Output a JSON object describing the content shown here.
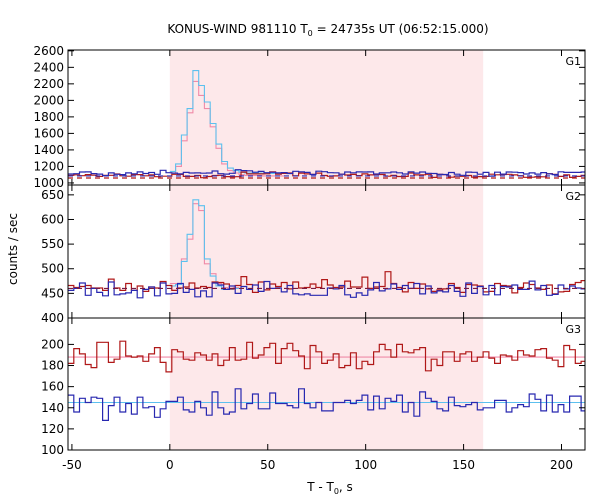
{
  "colors": {
    "shade": "#fde8ea",
    "red": "#b01818",
    "blue": "#2828b0",
    "pink": "#f08aa8",
    "lightblue": "#5cc0ee",
    "axis": "#000000"
  },
  "chart_data": {
    "type": "line",
    "title_main": "KONUS-WIND 981110 T",
    "title_sub": "0",
    "title_rest": " = 24735s UT (06:52:15.000)",
    "xlabel_main": "T - T",
    "xlabel_sub": "0",
    "xlabel_rest": ", s",
    "ylabel": "counts / sec",
    "xlim": [
      -52,
      212
    ],
    "x_ticks": [
      "-50",
      "0",
      "50",
      "100",
      "150",
      "200"
    ],
    "shaded_interval": [
      0,
      160
    ],
    "panels": [
      {
        "name": "G1",
        "ylim": [
          975,
          2610
        ],
        "y_ticks": [
          "1000",
          "1200",
          "1400",
          "1600",
          "1800",
          "2000",
          "2200",
          "2400",
          "2600"
        ],
        "background": [
          1085,
          1060
        ],
        "series": [
          {
            "name": "red",
            "bins_start": -52,
            "bin_width": 2.944,
            "values": [
              1093,
              1098,
              1088,
              1101,
              1094,
              1079,
              1091,
              1093,
              1108,
              1086,
              1081,
              1101,
              1101,
              1087,
              1098,
              1076,
              1081,
              1081,
              1104,
              1103,
              1079,
              1079,
              1090,
              1064,
              1078,
              1090,
              1092,
              1077,
              1074,
              1076,
              1131,
              1109,
              1109,
              1110,
              1111,
              1134,
              1106,
              1116,
              1120,
              1086,
              1118,
              1110,
              1105,
              1119,
              1090,
              1080,
              1085,
              1106,
              1096,
              1103,
              1089,
              1110,
              1097,
              1103,
              1102,
              1081,
              1091,
              1078,
              1079,
              1120,
              1097,
              1099,
              1104,
              1067,
              1104,
              1101,
              1069,
              1082,
              1080,
              1090,
              1070,
              1077,
              1079,
              1106,
              1098,
              1102,
              1104,
              1097,
              1088,
              1068,
              1070,
              1076,
              1074,
              1112,
              1103,
              1079,
              1097,
              1067,
              1079,
              1092
            ]
          },
          {
            "name": "blue",
            "bins_start": -52,
            "bin_width": 2.944,
            "values": [
              1108,
              1112,
              1133,
              1134,
              1113,
              1107,
              1089,
              1122,
              1104,
              1101,
              1122,
              1111,
              1134,
              1114,
              1126,
              1104,
              1153,
              1124,
              1119,
              1110,
              1127,
              1120,
              1121,
              1118,
              1120,
              1144,
              1112,
              1107,
              1117,
              1160,
              1150,
              1147,
              1130,
              1140,
              1124,
              1129,
              1122,
              1125,
              1114,
              1141,
              1134,
              1128,
              1102,
              1142,
              1136,
              1124,
              1123,
              1106,
              1133,
              1123,
              1134,
              1133,
              1134,
              1108,
              1121,
              1123,
              1133,
              1123,
              1108,
              1135,
              1119,
              1132,
              1117,
              1114,
              1104,
              1102,
              1126,
              1106,
              1092,
              1131,
              1129,
              1106,
              1128,
              1083,
              1130,
              1107,
              1133,
              1130,
              1125,
              1108,
              1122,
              1107,
              1125,
              1109,
              1101,
              1135,
              1127,
              1127,
              1127,
              1133
            ]
          },
          {
            "name": "pink",
            "bins_start": 0,
            "bin_width": 2.944,
            "values": [
              1120,
              1200,
              1510,
              1850,
              2230,
              2060,
              1900,
              1680,
              1420,
              1230,
              1150,
              1120,
              1100,
              1090,
              1090,
              1090,
              1085,
              1085,
              1085,
              1085
            ]
          },
          {
            "name": "lightblue",
            "bins_start": 0,
            "bin_width": 2.944,
            "values": [
              1140,
              1230,
              1580,
              1900,
              2360,
              2180,
              1980,
              1720,
              1470,
              1260,
              1180,
              1150,
              1130,
              1120,
              1120,
              1120,
              1115,
              1115,
              1115,
              1115
            ]
          }
        ]
      },
      {
        "name": "G2",
        "ylim": [
          400,
          670
        ],
        "y_ticks": [
          "400",
          "450",
          "500",
          "550",
          "600",
          "650"
        ],
        "background": [
          460
        ],
        "series": [
          {
            "name": "red",
            "bins_start": -52,
            "bin_width": 2.944,
            "values": [
              466,
              462,
              464,
              466,
              461,
              461,
              456,
              479,
              461,
              456,
              470,
              456,
              465,
              454,
              463,
              461,
              474,
              466,
              456,
              461,
              463,
              471,
              461,
              464,
              462,
              473,
              472,
              469,
              459,
              466,
              484,
              468,
              452,
              473,
              457,
              469,
              464,
              472,
              459,
              473,
              461,
              462,
              469,
              462,
              478,
              467,
              462,
              463,
              475,
              463,
              463,
              483,
              460,
              463,
              464,
              494,
              470,
              462,
              453,
              472,
              460,
              469,
              459,
              454,
              457,
              459,
              470,
              462,
              452,
              468,
              467,
              465,
              453,
              454,
              470,
              466,
              465,
              451,
              462,
              471,
              468,
              461,
              458,
              467,
              449,
              453,
              454,
              468,
              472,
              476
            ]
          },
          {
            "name": "blue",
            "bins_start": -52,
            "bin_width": 2.944,
            "values": [
              456,
              460,
              471,
              446,
              460,
              452,
              445,
              473,
              447,
              449,
              451,
              456,
              441,
              458,
              463,
              445,
              471,
              449,
              450,
              470,
              452,
              458,
              443,
              455,
              443,
              471,
              467,
              458,
              465,
              450,
              464,
              458,
              467,
              454,
              474,
              460,
              461,
              453,
              466,
              449,
              447,
              449,
              446,
              446,
              446,
              461,
              459,
              466,
              447,
              442,
              451,
              446,
              457,
              472,
              455,
              459,
              469,
              458,
              466,
              460,
              470,
              449,
              465,
              451,
              455,
              453,
              466,
              454,
              444,
              471,
              450,
              464,
              447,
              466,
              447,
              464,
              463,
              467,
              458,
              458,
              475,
              457,
              466,
              446,
              448,
              467,
              459,
              465,
              461,
              459
            ]
          },
          {
            "name": "pink",
            "bins_start": 0,
            "bin_width": 2.944,
            "values": [
              470,
              470,
              520,
              560,
              632,
              618,
              510,
              490,
              470,
              462,
              460,
              462
            ]
          },
          {
            "name": "lightblue",
            "bins_start": 0,
            "bin_width": 2.944,
            "values": [
              465,
              468,
              515,
              570,
              640,
              628,
              520,
              485,
              465,
              458,
              458,
              460
            ]
          }
        ]
      },
      {
        "name": "G3",
        "ylim": [
          100,
          225
        ],
        "y_ticks": [
          "100",
          "120",
          "140",
          "160",
          "180",
          "200"
        ],
        "background": [],
        "series": [
          {
            "name": "red",
            "bins_start": -52,
            "bin_width": 2.944,
            "values": [
              182,
              196,
              191,
              181,
              178,
              202,
              202,
              183,
              186,
              203,
              189,
              188,
              189,
              184,
              191,
              197,
              183,
              174,
              195,
              193,
              186,
              185,
              192,
              190,
              185,
              191,
              180,
              185,
              197,
              185,
              186,
              202,
              187,
              190,
              197,
              201,
              182,
              196,
              201,
              194,
              189,
              177,
              199,
              193,
              182,
              185,
              191,
              178,
              180,
              192,
              177,
              184,
              181,
              193,
              200,
              195,
              188,
              200,
              193,
              192,
              195,
              197,
              175,
              186,
              180,
              193,
              193,
              184,
              191,
              193,
              184,
              188,
              193,
              187,
              182,
              190,
              189,
              185,
              194,
              190,
              189,
              195,
              196,
              187,
              185,
              179,
              199,
              195,
              182,
              184
            ]
          },
          {
            "name": "blue",
            "bins_start": -52,
            "bin_width": 2.944,
            "values": [
              152,
              136,
              149,
              145,
              150,
              149,
              128,
              142,
              150,
              136,
              144,
              134,
              150,
              140,
              141,
              131,
              139,
              146,
              146,
              150,
              138,
              136,
              146,
              140,
              133,
              155,
              140,
              134,
              136,
              158,
              139,
              144,
              153,
              139,
              139,
              154,
              144,
              144,
              142,
              140,
              158,
              144,
              140,
              145,
              137,
              137,
              145,
              145,
              147,
              144,
              147,
              152,
              138,
              151,
              139,
              149,
              146,
              152,
              136,
              145,
              132,
              155,
              149,
              146,
              139,
              137,
              150,
              142,
              141,
              143,
              145,
              138,
              140,
              140,
              147,
              147,
              136,
              140,
              143,
              141,
              153,
              148,
              137,
              152,
              136,
              143,
              136,
              151,
              151,
              137
            ]
          },
          {
            "name": "pink",
            "bins_start": -52,
            "bin_width": 264,
            "values": [
              188
            ]
          },
          {
            "name": "lightblue",
            "bins_start": -52,
            "bin_width": 264,
            "values": [
              145
            ]
          }
        ]
      }
    ]
  }
}
